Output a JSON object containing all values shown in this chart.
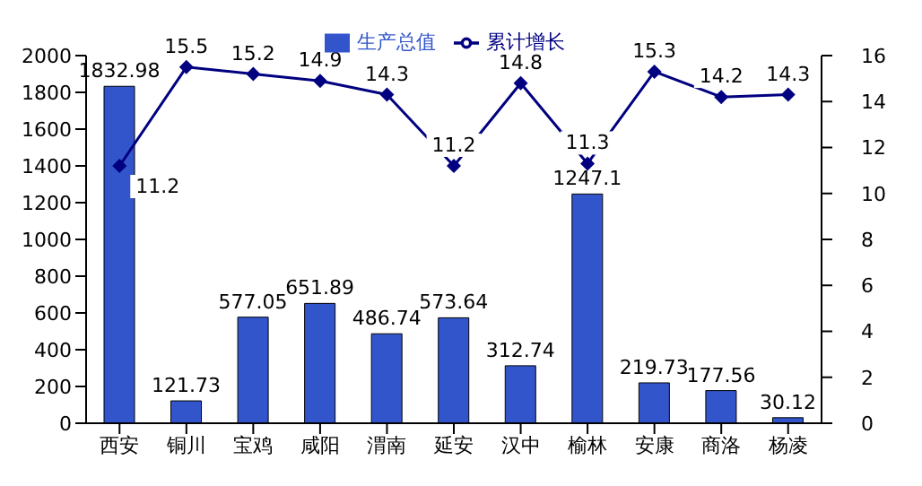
{
  "chart_data": {
    "type": "bar",
    "categories": [
      "西安",
      "铜川",
      "宝鸡",
      "咸阳",
      "渭南",
      "延安",
      "汉中",
      "榆林",
      "安康",
      "商洛",
      "杨凌"
    ],
    "series": [
      {
        "name": "生产总值",
        "color": "#3355cc",
        "values": [
          1832.98,
          121.73,
          577.05,
          651.89,
          486.74,
          573.64,
          312.74,
          1247.1,
          219.73,
          177.56,
          30.12
        ]
      },
      {
        "name": "累计增长",
        "type": "line",
        "axis": "y2",
        "color": "#000080",
        "values": [
          11.2,
          15.5,
          15.2,
          14.9,
          14.3,
          11.2,
          14.8,
          11.3,
          15.3,
          14.2,
          14.3
        ]
      }
    ],
    "ylim": [
      0,
      2000
    ],
    "yticks": [
      0,
      200,
      400,
      600,
      800,
      1000,
      1200,
      1400,
      1600,
      1800,
      2000
    ],
    "y2lim": [
      0,
      16
    ],
    "y2ticks": [
      0,
      2,
      4,
      6,
      8,
      10,
      12,
      14,
      16
    ],
    "data_labels": true,
    "legend": "top",
    "grid": false,
    "marker": "diamond",
    "line_style": "solid"
  }
}
